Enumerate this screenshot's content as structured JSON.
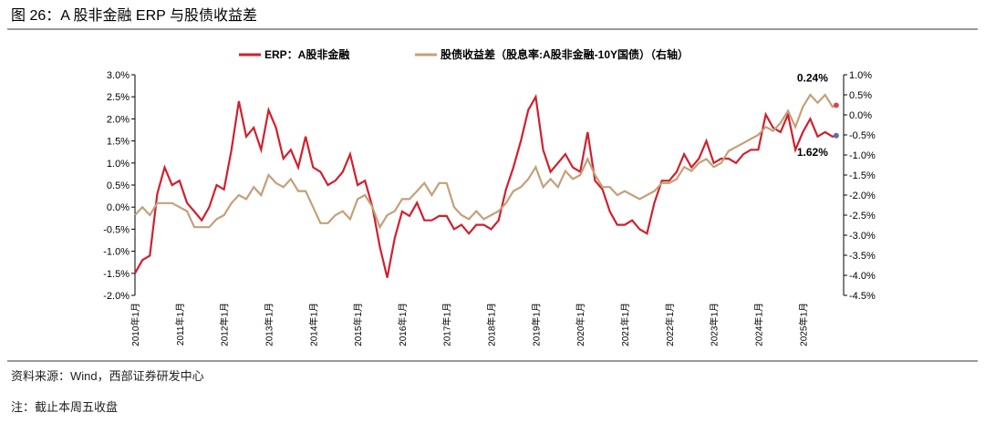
{
  "chart_data": {
    "type": "line",
    "title": "图 26：A 股非金融 ERP 与股债收益差",
    "source": "资料来源：Wind，西部证券研发中心",
    "note": "注：截止本周五收盘",
    "x": [
      "2010-01",
      "2010-03",
      "2010-05",
      "2010-07",
      "2010-09",
      "2010-11",
      "2011-01",
      "2011-03",
      "2011-05",
      "2011-07",
      "2011-09",
      "2011-11",
      "2012-01",
      "2012-03",
      "2012-05",
      "2012-07",
      "2012-09",
      "2012-11",
      "2013-01",
      "2013-03",
      "2013-05",
      "2013-07",
      "2013-09",
      "2013-11",
      "2014-01",
      "2014-03",
      "2014-05",
      "2014-07",
      "2014-09",
      "2014-11",
      "2015-01",
      "2015-03",
      "2015-05",
      "2015-07",
      "2015-09",
      "2015-11",
      "2016-01",
      "2016-03",
      "2016-05",
      "2016-07",
      "2016-09",
      "2016-11",
      "2017-01",
      "2017-03",
      "2017-05",
      "2017-07",
      "2017-09",
      "2017-11",
      "2018-01",
      "2018-03",
      "2018-05",
      "2018-07",
      "2018-09",
      "2018-11",
      "2019-01",
      "2019-03",
      "2019-05",
      "2019-07",
      "2019-09",
      "2019-11",
      "2020-01",
      "2020-03",
      "2020-05",
      "2020-07",
      "2020-09",
      "2020-11",
      "2021-01",
      "2021-03",
      "2021-05",
      "2021-07",
      "2021-09",
      "2021-11",
      "2022-01",
      "2022-03",
      "2022-05",
      "2022-07",
      "2022-09",
      "2022-11",
      "2023-01",
      "2023-03",
      "2023-05",
      "2023-07",
      "2023-09",
      "2023-11",
      "2024-01",
      "2024-03",
      "2024-05",
      "2024-07",
      "2024-09",
      "2024-11",
      "2025-01",
      "2025-03",
      "2025-05",
      "2025-07",
      "2025-09",
      "2025-10"
    ],
    "xlim": [
      "2010-01",
      "2025-12"
    ],
    "xticks": [
      {
        "value": "2010-01",
        "label": "2010年1月"
      },
      {
        "value": "2011-01",
        "label": "2011年1月"
      },
      {
        "value": "2012-01",
        "label": "2012年1月"
      },
      {
        "value": "2013-01",
        "label": "2013年1月"
      },
      {
        "value": "2014-01",
        "label": "2014年1月"
      },
      {
        "value": "2015-01",
        "label": "2015年1月"
      },
      {
        "value": "2016-01",
        "label": "2016年1月"
      },
      {
        "value": "2017-01",
        "label": "2017年1月"
      },
      {
        "value": "2018-01",
        "label": "2018年1月"
      },
      {
        "value": "2019-01",
        "label": "2019年1月"
      },
      {
        "value": "2020-01",
        "label": "2020年1月"
      },
      {
        "value": "2021-01",
        "label": "2021年1月"
      },
      {
        "value": "2022-01",
        "label": "2022年1月"
      },
      {
        "value": "2023-01",
        "label": "2023年1月"
      },
      {
        "value": "2024-01",
        "label": "2024年1月"
      },
      {
        "value": "2025-01",
        "label": "2025年1月"
      }
    ],
    "ylim": [
      -2,
      3
    ],
    "yticks": [
      {
        "value": 3,
        "label": "3.0%"
      },
      {
        "value": 2.5,
        "label": "2.5%"
      },
      {
        "value": 2,
        "label": "2.0%"
      },
      {
        "value": 1.5,
        "label": "1.5%"
      },
      {
        "value": 1,
        "label": "1.0%"
      },
      {
        "value": 0.5,
        "label": "0.5%"
      },
      {
        "value": 0,
        "label": "0.0%"
      },
      {
        "value": -0.5,
        "label": "-0.5%"
      },
      {
        "value": -1,
        "label": "-1.0%"
      },
      {
        "value": -1.5,
        "label": "-1.5%"
      },
      {
        "value": -2,
        "label": "-2.0%"
      }
    ],
    "y2lim": [
      -4.5,
      1
    ],
    "y2ticks": [
      {
        "value": 1,
        "label": "1.0%"
      },
      {
        "value": 0.5,
        "label": "0.5%"
      },
      {
        "value": 0,
        "label": "0.0%"
      },
      {
        "value": -0.5,
        "label": "-0.5%"
      },
      {
        "value": -1,
        "label": "-1.0%"
      },
      {
        "value": -1.5,
        "label": "-1.5%"
      },
      {
        "value": -2,
        "label": "-2.0%"
      },
      {
        "value": -2.5,
        "label": "-2.5%"
      },
      {
        "value": -3,
        "label": "-3.0%"
      },
      {
        "value": -3.5,
        "label": "-3.5%"
      },
      {
        "value": -4,
        "label": "-4.0%"
      },
      {
        "value": -4.5,
        "label": "-4.5%"
      }
    ],
    "series": [
      {
        "name": "ERP：A股非金融",
        "color": "#d0202e",
        "values": [
          -1.5,
          -1.2,
          -1.1,
          0.3,
          0.9,
          0.5,
          0.6,
          0.1,
          -0.1,
          -0.3,
          0.0,
          0.5,
          0.4,
          1.3,
          2.4,
          1.6,
          1.8,
          1.3,
          2.2,
          1.8,
          1.1,
          1.3,
          0.9,
          1.6,
          0.9,
          0.8,
          0.5,
          0.6,
          0.8,
          1.2,
          0.5,
          0.6,
          0.0,
          -0.9,
          -1.6,
          -0.7,
          -0.1,
          -0.2,
          0.1,
          -0.3,
          -0.3,
          -0.2,
          -0.2,
          -0.5,
          -0.4,
          -0.6,
          -0.4,
          -0.4,
          -0.5,
          -0.3,
          0.4,
          0.9,
          1.5,
          2.2,
          2.5,
          1.3,
          0.8,
          1.0,
          1.2,
          0.9,
          0.8,
          1.7,
          0.6,
          0.4,
          -0.1,
          -0.4,
          -0.4,
          -0.3,
          -0.5,
          -0.6,
          0.1,
          0.6,
          0.6,
          0.8,
          1.2,
          0.9,
          1.1,
          1.5,
          1.0,
          1.1,
          1.1,
          1.0,
          1.2,
          1.3,
          1.3,
          2.1,
          1.8,
          1.7,
          2.1,
          1.3,
          1.7,
          2.0,
          1.6,
          1.7,
          1.6,
          1.62
        ]
      },
      {
        "name": "股债收益差（股息率:A股非金融-10Y国债）（右轴）",
        "color": "#c4a07a",
        "axis": "y2",
        "values": [
          -2.5,
          -2.3,
          -2.5,
          -2.2,
          -2.2,
          -2.2,
          -2.3,
          -2.4,
          -2.8,
          -2.8,
          -2.8,
          -2.6,
          -2.5,
          -2.2,
          -2.0,
          -2.1,
          -1.8,
          -2.0,
          -1.5,
          -1.7,
          -1.8,
          -1.6,
          -1.9,
          -1.9,
          -2.3,
          -2.7,
          -2.7,
          -2.5,
          -2.4,
          -2.6,
          -2.1,
          -2.0,
          -2.3,
          -2.8,
          -2.5,
          -2.4,
          -2.1,
          -2.1,
          -1.9,
          -1.7,
          -2.0,
          -1.7,
          -1.7,
          -2.3,
          -2.5,
          -2.6,
          -2.4,
          -2.6,
          -2.5,
          -2.4,
          -2.2,
          -1.9,
          -1.8,
          -1.6,
          -1.3,
          -1.8,
          -1.6,
          -1.8,
          -1.4,
          -1.6,
          -1.5,
          -1.1,
          -1.5,
          -1.8,
          -1.8,
          -2.0,
          -1.9,
          -2.0,
          -2.1,
          -2.0,
          -1.9,
          -1.7,
          -1.7,
          -1.6,
          -1.3,
          -1.4,
          -1.2,
          -1.1,
          -1.3,
          -1.2,
          -0.9,
          -0.8,
          -0.7,
          -0.6,
          -0.5,
          -0.3,
          -0.4,
          -0.2,
          0.1,
          -0.3,
          0.2,
          0.5,
          0.3,
          0.5,
          0.2,
          0.24
        ]
      }
    ],
    "annotations": [
      "1.62%",
      "0.24%"
    ]
  }
}
